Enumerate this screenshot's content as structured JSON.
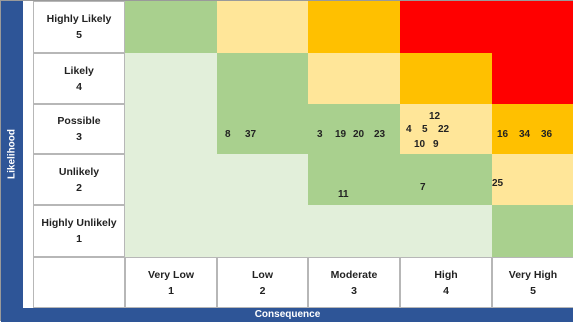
{
  "chart_data": {
    "type": "heatmap",
    "ylabel": "Likelihood",
    "xlabel": "Consequence",
    "rows": [
      {
        "label": "Highly Likely",
        "score": "5"
      },
      {
        "label": "Likely",
        "score": "4"
      },
      {
        "label": "Possible",
        "score": "3"
      },
      {
        "label": "Unlikely",
        "score": "2"
      },
      {
        "label": "Highly Unlikely",
        "score": "1"
      }
    ],
    "columns": [
      {
        "label": "Very Low",
        "score": "1"
      },
      {
        "label": "Low",
        "score": "2"
      },
      {
        "label": "Moderate",
        "score": "3"
      },
      {
        "label": "High",
        "score": "4"
      },
      {
        "label": "Very High",
        "score": "5"
      }
    ],
    "colors": {
      "very_low": "#e2efda",
      "low": "#a9d08e",
      "medium": "#ffe699",
      "high": "#ffc000",
      "extreme": "#ff0000"
    },
    "cell_levels": [
      [
        "low",
        "medium",
        "high",
        "extreme",
        "extreme"
      ],
      [
        "very_low",
        "low",
        "medium",
        "high",
        "extreme"
      ],
      [
        "very_low",
        "low",
        "low",
        "medium",
        "high"
      ],
      [
        "very_low",
        "very_low",
        "low",
        "low",
        "medium"
      ],
      [
        "very_low",
        "very_low",
        "very_low",
        "very_low",
        "low"
      ]
    ],
    "risks": [
      {
        "id": "8",
        "likelihood": 3,
        "consequence": 2
      },
      {
        "id": "37",
        "likelihood": 3,
        "consequence": 2
      },
      {
        "id": "3",
        "likelihood": 3,
        "consequence": 3
      },
      {
        "id": "19",
        "likelihood": 3,
        "consequence": 3
      },
      {
        "id": "20",
        "likelihood": 3,
        "consequence": 3
      },
      {
        "id": "23",
        "likelihood": 3,
        "consequence": 3
      },
      {
        "id": "12",
        "likelihood": 3,
        "consequence": 4
      },
      {
        "id": "4",
        "likelihood": 3,
        "consequence": 4
      },
      {
        "id": "5",
        "likelihood": 3,
        "consequence": 4
      },
      {
        "id": "22",
        "likelihood": 3,
        "consequence": 4
      },
      {
        "id": "10",
        "likelihood": 3,
        "consequence": 4
      },
      {
        "id": "9",
        "likelihood": 3,
        "consequence": 4
      },
      {
        "id": "16",
        "likelihood": 3,
        "consequence": 5
      },
      {
        "id": "34",
        "likelihood": 3,
        "consequence": 5
      },
      {
        "id": "36",
        "likelihood": 3,
        "consequence": 5
      },
      {
        "id": "11",
        "likelihood": 2,
        "consequence": 3
      },
      {
        "id": "7",
        "likelihood": 2,
        "consequence": 4
      },
      {
        "id": "25",
        "likelihood": 2,
        "consequence": 5
      }
    ]
  }
}
